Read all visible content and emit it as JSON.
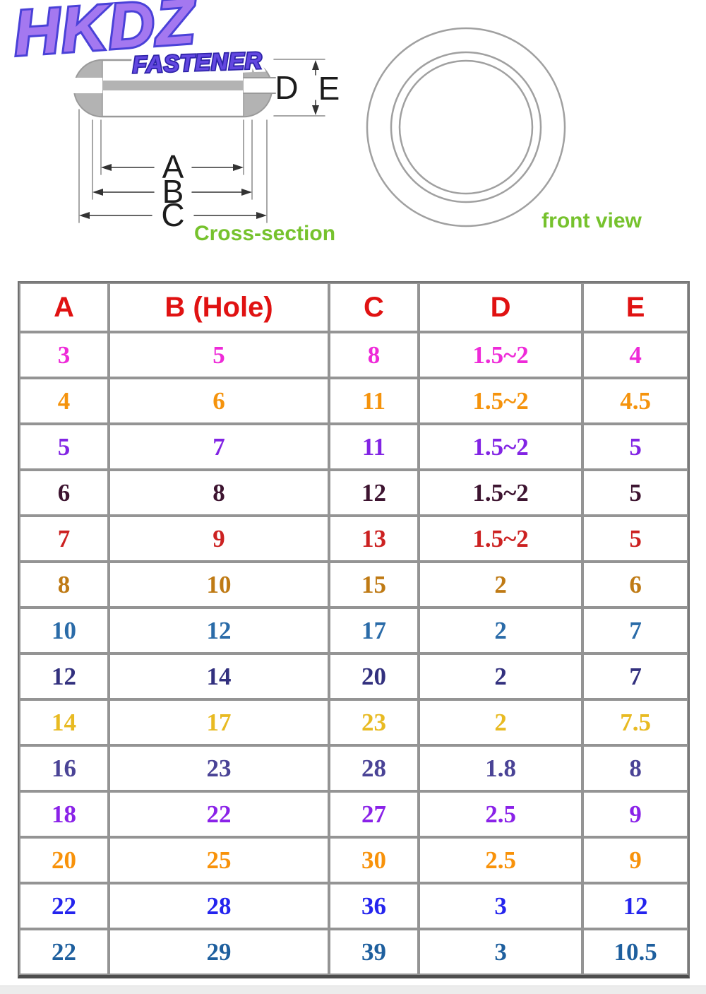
{
  "logo": {
    "brand": "HKDZ",
    "subtitle": "FASTENER"
  },
  "diagram": {
    "cross_section_label": "Cross-section",
    "front_view_label": "front view",
    "dims": {
      "a": "A",
      "b": "B",
      "c": "C",
      "d": "D",
      "e": "E"
    }
  },
  "colors": {
    "header_text": "#e01212",
    "label_green": "#76c22d",
    "logo_fill": "#a478f0",
    "logo_outline": "#4a41d8",
    "subtitle_fill": "#6247e0",
    "subtitle_outline": "#2d22a8"
  },
  "table": {
    "columns": [
      {
        "key": "a",
        "label": "A"
      },
      {
        "key": "b",
        "label": "B (Hole)"
      },
      {
        "key": "c",
        "label": "C"
      },
      {
        "key": "d",
        "label": "D"
      },
      {
        "key": "e",
        "label": "E"
      }
    ],
    "rows": [
      {
        "a": "3",
        "b": "5",
        "c": "8",
        "d": "1.5~2",
        "e": "4",
        "color": "#ee2ad8"
      },
      {
        "a": "4",
        "b": "6",
        "c": "11",
        "d": "1.5~2",
        "e": "4.5",
        "color": "#f5930c"
      },
      {
        "a": "5",
        "b": "7",
        "c": "11",
        "d": "1.5~2",
        "e": "5",
        "color": "#8224e4"
      },
      {
        "a": "6",
        "b": "8",
        "c": "12",
        "d": "1.5~2",
        "e": "5",
        "color": "#3d1430"
      },
      {
        "a": "7",
        "b": "9",
        "c": "13",
        "d": "1.5~2",
        "e": "5",
        "color": "#cc2121"
      },
      {
        "a": "8",
        "b": "10",
        "c": "15",
        "d": "2",
        "e": "6",
        "color": "#bf7a14"
      },
      {
        "a": "10",
        "b": "12",
        "c": "17",
        "d": "2",
        "e": "7",
        "color": "#2a6ba8"
      },
      {
        "a": "12",
        "b": "14",
        "c": "20",
        "d": "2",
        "e": "7",
        "color": "#32307e"
      },
      {
        "a": "14",
        "b": "17",
        "c": "23",
        "d": "2",
        "e": "7.5",
        "color": "#e8ba22"
      },
      {
        "a": "16",
        "b": "23",
        "c": "28",
        "d": "1.8",
        "e": "8",
        "color": "#4a4396"
      },
      {
        "a": "18",
        "b": "22",
        "c": "27",
        "d": "2.5",
        "e": "9",
        "color": "#8a22e8"
      },
      {
        "a": "20",
        "b": "25",
        "c": "30",
        "d": "2.5",
        "e": "9",
        "color": "#f8920a"
      },
      {
        "a": "22",
        "b": "28",
        "c": "36",
        "d": "3",
        "e": "12",
        "color": "#2424ee"
      },
      {
        "a": "22",
        "b": "29",
        "c": "39",
        "d": "3",
        "e": "10.5",
        "color": "#1e5f9e"
      }
    ]
  }
}
